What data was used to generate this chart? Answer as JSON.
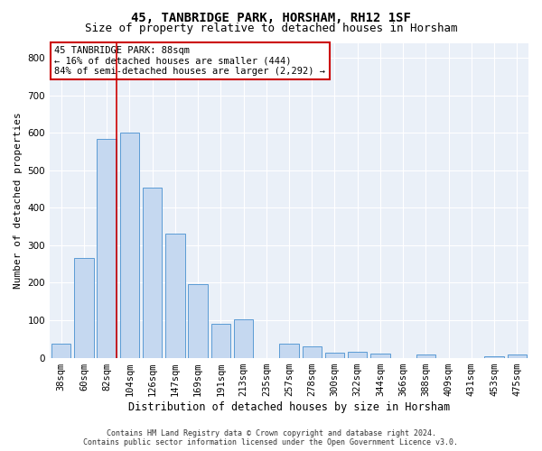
{
  "title": "45, TANBRIDGE PARK, HORSHAM, RH12 1SF",
  "subtitle": "Size of property relative to detached houses in Horsham",
  "xlabel": "Distribution of detached houses by size in Horsham",
  "ylabel": "Number of detached properties",
  "bar_color": "#c5d8f0",
  "bar_edge_color": "#5b9bd5",
  "categories": [
    "38sqm",
    "60sqm",
    "82sqm",
    "104sqm",
    "126sqm",
    "147sqm",
    "169sqm",
    "191sqm",
    "213sqm",
    "235sqm",
    "257sqm",
    "278sqm",
    "300sqm",
    "322sqm",
    "344sqm",
    "366sqm",
    "388sqm",
    "409sqm",
    "431sqm",
    "453sqm",
    "475sqm"
  ],
  "values": [
    38,
    267,
    583,
    601,
    453,
    330,
    197,
    90,
    102,
    0,
    38,
    31,
    14,
    15,
    10,
    0,
    9,
    0,
    0,
    5,
    8
  ],
  "vline_x_index": 2,
  "vline_color": "#cc0000",
  "annotation_text": "45 TANBRIDGE PARK: 88sqm\n← 16% of detached houses are smaller (444)\n84% of semi-detached houses are larger (2,292) →",
  "annotation_box_color": "#ffffff",
  "annotation_box_edge": "#cc0000",
  "footer_line1": "Contains HM Land Registry data © Crown copyright and database right 2024.",
  "footer_line2": "Contains public sector information licensed under the Open Government Licence v3.0.",
  "ylim": [
    0,
    840
  ],
  "yticks": [
    0,
    100,
    200,
    300,
    400,
    500,
    600,
    700,
    800
  ],
  "background_color": "#eaf0f8",
  "grid_color": "#ffffff",
  "title_fontsize": 10,
  "subtitle_fontsize": 9,
  "xlabel_fontsize": 8.5,
  "ylabel_fontsize": 8,
  "tick_fontsize": 7.5,
  "annotation_fontsize": 7.5,
  "footer_fontsize": 6
}
